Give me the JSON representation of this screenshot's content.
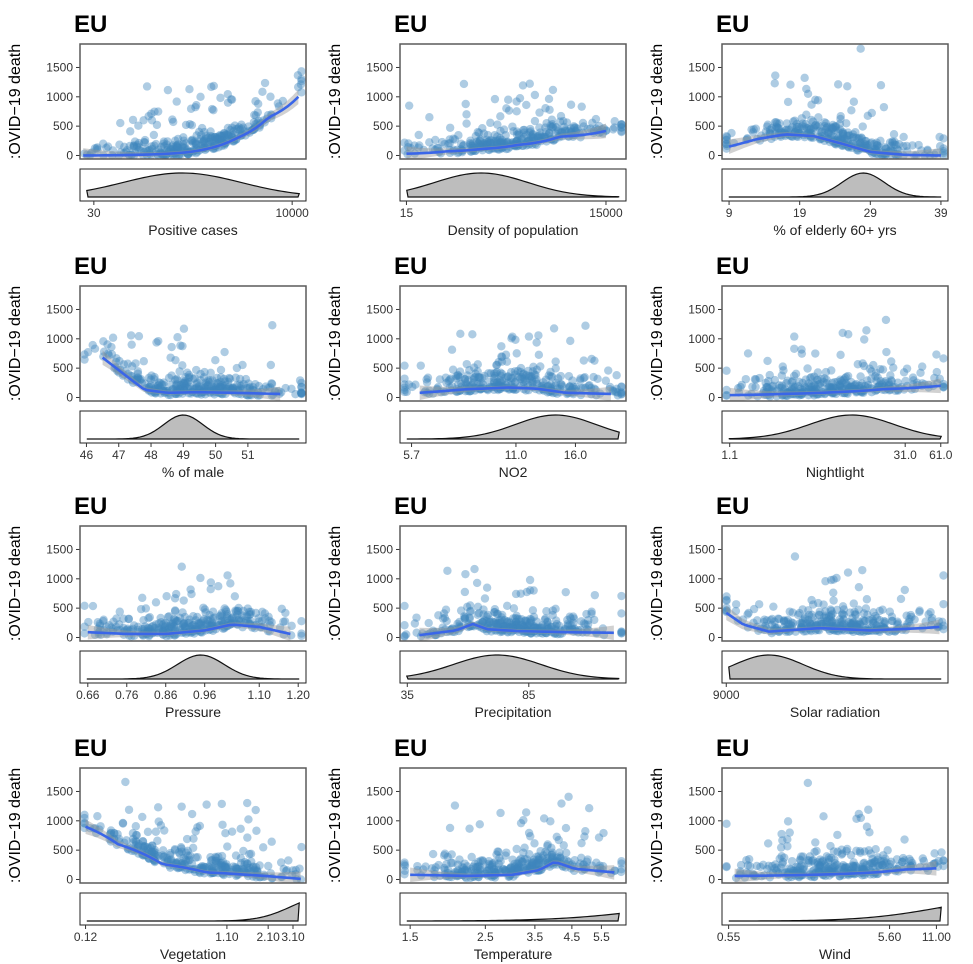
{
  "colors": {
    "points": "#3d86bc",
    "smooth": "#3a66e8",
    "band": "#9a9a9a",
    "density": "#bdbdbd"
  },
  "y_label": ":OVID−19 death",
  "chart_data": [
    {
      "type": "scatter",
      "title": "EU",
      "xlabel": "Positive cases",
      "ylabel": ":OVID−19 death",
      "x_scale": "log",
      "xlim": [
        20,
        15000
      ],
      "ylim": [
        -60,
        1900
      ],
      "yticks": [
        0,
        500,
        1000,
        1500
      ],
      "xticks": [
        {
          "v": 30,
          "label": "30"
        },
        {
          "v": 10000,
          "label": "10000"
        }
      ],
      "smooth": [
        [
          22,
          0
        ],
        [
          100,
          10
        ],
        [
          500,
          60
        ],
        [
          2000,
          300
        ],
        [
          5000,
          650
        ],
        [
          12000,
          1000
        ]
      ],
      "density": {
        "type": "normal",
        "mean": 2.6,
        "sd": 0.75
      }
    },
    {
      "type": "scatter",
      "title": "EU",
      "xlabel": "Density of population",
      "ylabel": ":OVID−19 death",
      "x_scale": "log",
      "xlim": [
        12,
        30000
      ],
      "ylim": [
        -60,
        1900
      ],
      "yticks": [
        0,
        500,
        1000,
        1500
      ],
      "xticks": [
        {
          "v": 15,
          "label": "15"
        },
        {
          "v": 15000,
          "label": "15000"
        }
      ],
      "smooth": [
        [
          15,
          30
        ],
        [
          60,
          70
        ],
        [
          200,
          110
        ],
        [
          700,
          180
        ],
        [
          3000,
          320
        ],
        [
          15000,
          420
        ]
      ],
      "density": {
        "type": "normal",
        "mean": 2.3,
        "sd": 0.7
      }
    },
    {
      "type": "scatter",
      "title": "EU",
      "xlabel": "% of elderly 60+ yrs",
      "ylabel": ":OVID−19 death",
      "x_scale": "linear",
      "xlim": [
        8,
        40
      ],
      "ylim": [
        -60,
        1900
      ],
      "yticks": [
        0,
        500,
        1000,
        1500
      ],
      "xticks": [
        {
          "v": 9,
          "label": "9"
        },
        {
          "v": 19,
          "label": "19"
        },
        {
          "v": 29,
          "label": "29"
        },
        {
          "v": 39,
          "label": "39"
        }
      ],
      "smooth": [
        [
          9,
          150
        ],
        [
          13,
          280
        ],
        [
          17,
          360
        ],
        [
          21,
          330
        ],
        [
          25,
          200
        ],
        [
          29,
          60
        ],
        [
          34,
          10
        ],
        [
          39,
          0
        ]
      ],
      "density": {
        "type": "normal",
        "mean": 28,
        "sd": 3
      }
    },
    {
      "type": "scatter",
      "title": "EU",
      "xlabel": "% of male",
      "ylabel": ":OVID−19 death",
      "x_scale": "linear",
      "xlim": [
        45.8,
        52.8
      ],
      "ylim": [
        -60,
        1900
      ],
      "yticks": [
        0,
        500,
        1000,
        1500
      ],
      "xticks": [
        {
          "v": 46,
          "label": "46"
        },
        {
          "v": 47,
          "label": "47"
        },
        {
          "v": 48,
          "label": "48"
        },
        {
          "v": 49,
          "label": "49"
        },
        {
          "v": 50,
          "label": "50"
        },
        {
          "v": 51,
          "label": "51"
        }
      ],
      "smooth": [
        [
          46.5,
          680
        ],
        [
          47.2,
          380
        ],
        [
          47.8,
          130
        ],
        [
          48.5,
          80
        ],
        [
          49.5,
          90
        ],
        [
          50.5,
          80
        ],
        [
          52,
          60
        ]
      ],
      "density": {
        "type": "normal",
        "mean": 49,
        "sd": 0.6
      }
    },
    {
      "type": "scatter",
      "title": "EU",
      "xlabel": "NO2",
      "ylabel": ":OVID−19 death",
      "x_scale": "log",
      "xlim": [
        5.3,
        22
      ],
      "ylim": [
        -60,
        1900
      ],
      "yticks": [
        0,
        500,
        1000,
        1500
      ],
      "xticks": [
        {
          "v": 5.7,
          "label": "5.7"
        },
        {
          "v": 11.0,
          "label": "11.0"
        },
        {
          "v": 16.0,
          "label": "16.0"
        }
      ],
      "smooth": [
        [
          6,
          80
        ],
        [
          8,
          140
        ],
        [
          10.5,
          170
        ],
        [
          12.5,
          150
        ],
        [
          15,
          80
        ],
        [
          20,
          60
        ]
      ],
      "density": {
        "type": "normal",
        "mean": 1.15,
        "sd": 0.11
      }
    },
    {
      "type": "scatter",
      "title": "EU",
      "xlabel": "Nightlight",
      "ylabel": ":OVID−19 death",
      "x_scale": "log",
      "xlim": [
        0.95,
        70
      ],
      "ylim": [
        -60,
        1900
      ],
      "yticks": [
        0,
        500,
        1000,
        1500
      ],
      "xticks": [
        {
          "v": 1.1,
          "label": "1.1"
        },
        {
          "v": 31.0,
          "label": "31.0"
        },
        {
          "v": 61.0,
          "label": "61.0"
        }
      ],
      "smooth": [
        [
          1.1,
          40
        ],
        [
          3,
          60
        ],
        [
          8,
          90
        ],
        [
          20,
          140
        ],
        [
          40,
          170
        ],
        [
          61,
          200
        ]
      ],
      "density": {
        "type": "normal",
        "mean": 1.05,
        "sd": 0.35
      }
    },
    {
      "type": "scatter",
      "title": "EU",
      "xlabel": "Pressure",
      "ylabel": ":OVID−19 death",
      "x_scale": "linear",
      "xlim": [
        0.64,
        1.22
      ],
      "ylim": [
        -60,
        1900
      ],
      "yticks": [
        0,
        500,
        1000,
        1500
      ],
      "xticks": [
        {
          "v": 0.66,
          "label": "0.66"
        },
        {
          "v": 0.76,
          "label": "0.76"
        },
        {
          "v": 0.86,
          "label": "0.86"
        },
        {
          "v": 0.96,
          "label": "0.96"
        },
        {
          "v": 1.1,
          "label": "1.10"
        },
        {
          "v": 1.2,
          "label": "1.20"
        }
      ],
      "smooth": [
        [
          0.66,
          90
        ],
        [
          0.76,
          60
        ],
        [
          0.86,
          60
        ],
        [
          0.96,
          120
        ],
        [
          1.03,
          220
        ],
        [
          1.1,
          180
        ],
        [
          1.18,
          60
        ]
      ],
      "density": {
        "type": "normal",
        "mean": 0.95,
        "sd": 0.06
      }
    },
    {
      "type": "scatter",
      "title": "EU",
      "xlabel": "Precipitation",
      "ylabel": ":OVID−19 death",
      "x_scale": "linear",
      "xlim": [
        32,
        125
      ],
      "ylim": [
        -60,
        1900
      ],
      "yticks": [
        0,
        500,
        1000,
        1500
      ],
      "xticks": [
        {
          "v": 35,
          "label": "35"
        },
        {
          "v": 85,
          "label": "85"
        }
      ],
      "smooth": [
        [
          40,
          40
        ],
        [
          55,
          120
        ],
        [
          62,
          230
        ],
        [
          68,
          140
        ],
        [
          80,
          110
        ],
        [
          100,
          90
        ],
        [
          120,
          80
        ]
      ],
      "density": {
        "type": "normal",
        "mean": 72,
        "sd": 18
      }
    },
    {
      "type": "scatter",
      "title": "EU",
      "xlabel": "Solar radiation",
      "ylabel": ":OVID−19 death",
      "x_scale": "linear",
      "xlim": [
        8500,
        35000
      ],
      "ylim": [
        -60,
        1900
      ],
      "yticks": [
        0,
        500,
        1000,
        1500
      ],
      "xticks": [
        {
          "v": 9000,
          "label": "9000"
        }
      ],
      "smooth": [
        [
          9000,
          420
        ],
        [
          11000,
          220
        ],
        [
          14000,
          100
        ],
        [
          20000,
          160
        ],
        [
          26000,
          120
        ],
        [
          32000,
          160
        ],
        [
          34000,
          180
        ]
      ],
      "density": {
        "type": "normal",
        "mean": 14000,
        "sd": 4000
      }
    },
    {
      "type": "scatter",
      "title": "EU",
      "xlabel": "Vegetation",
      "ylabel": ":OVID−19 death",
      "x_scale": "log",
      "xlim": [
        0.11,
        3.8
      ],
      "ylim": [
        -60,
        1900
      ],
      "yticks": [
        0,
        500,
        1000,
        1500
      ],
      "xticks": [
        {
          "v": 0.12,
          "label": "0.12"
        },
        {
          "v": 1.1,
          "label": "1.10"
        },
        {
          "v": 2.1,
          "label": "2.10"
        },
        {
          "v": 3.1,
          "label": "3.10"
        }
      ],
      "smooth": [
        [
          0.12,
          900
        ],
        [
          0.2,
          600
        ],
        [
          0.4,
          260
        ],
        [
          0.8,
          120
        ],
        [
          1.5,
          80
        ],
        [
          2.5,
          40
        ],
        [
          3.5,
          10
        ]
      ],
      "density": {
        "type": "normal",
        "mean": 0.7,
        "sd": 0.22
      }
    },
    {
      "type": "scatter",
      "title": "EU",
      "xlabel": "Temperature",
      "ylabel": ":OVID−19 death",
      "x_scale": "log",
      "xlim": [
        1.4,
        6.5
      ],
      "ylim": [
        -60,
        1900
      ],
      "yticks": [
        0,
        500,
        1000,
        1500
      ],
      "xticks": [
        {
          "v": 1.5,
          "label": "1.5"
        },
        {
          "v": 2.5,
          "label": "2.5"
        },
        {
          "v": 3.5,
          "label": "3.5"
        },
        {
          "v": 4.5,
          "label": "4.5"
        },
        {
          "v": 5.5,
          "label": "5.5"
        }
      ],
      "smooth": [
        [
          1.5,
          80
        ],
        [
          2.2,
          60
        ],
        [
          3.0,
          80
        ],
        [
          3.6,
          160
        ],
        [
          4.0,
          300
        ],
        [
          4.6,
          180
        ],
        [
          6.0,
          120
        ]
      ],
      "density": {
        "type": "normal",
        "mean": 1.25,
        "sd": 0.3
      }
    },
    {
      "type": "scatter",
      "title": "EU",
      "xlabel": "Wind",
      "ylabel": ":OVID−19 death",
      "x_scale": "log",
      "xlim": [
        0.5,
        13
      ],
      "ylim": [
        -60,
        1900
      ],
      "yticks": [
        0,
        500,
        1000,
        1500
      ],
      "xticks": [
        {
          "v": 0.55,
          "label": "0.55"
        },
        {
          "v": 5.6,
          "label": "5.60"
        },
        {
          "v": 11.0,
          "label": "11.00"
        }
      ],
      "smooth": [
        [
          0.6,
          60
        ],
        [
          1.2,
          70
        ],
        [
          2.5,
          90
        ],
        [
          4.5,
          120
        ],
        [
          7,
          170
        ],
        [
          11,
          190
        ]
      ],
      "density": {
        "type": "normal",
        "mean": 1.6,
        "sd": 0.5
      }
    }
  ]
}
